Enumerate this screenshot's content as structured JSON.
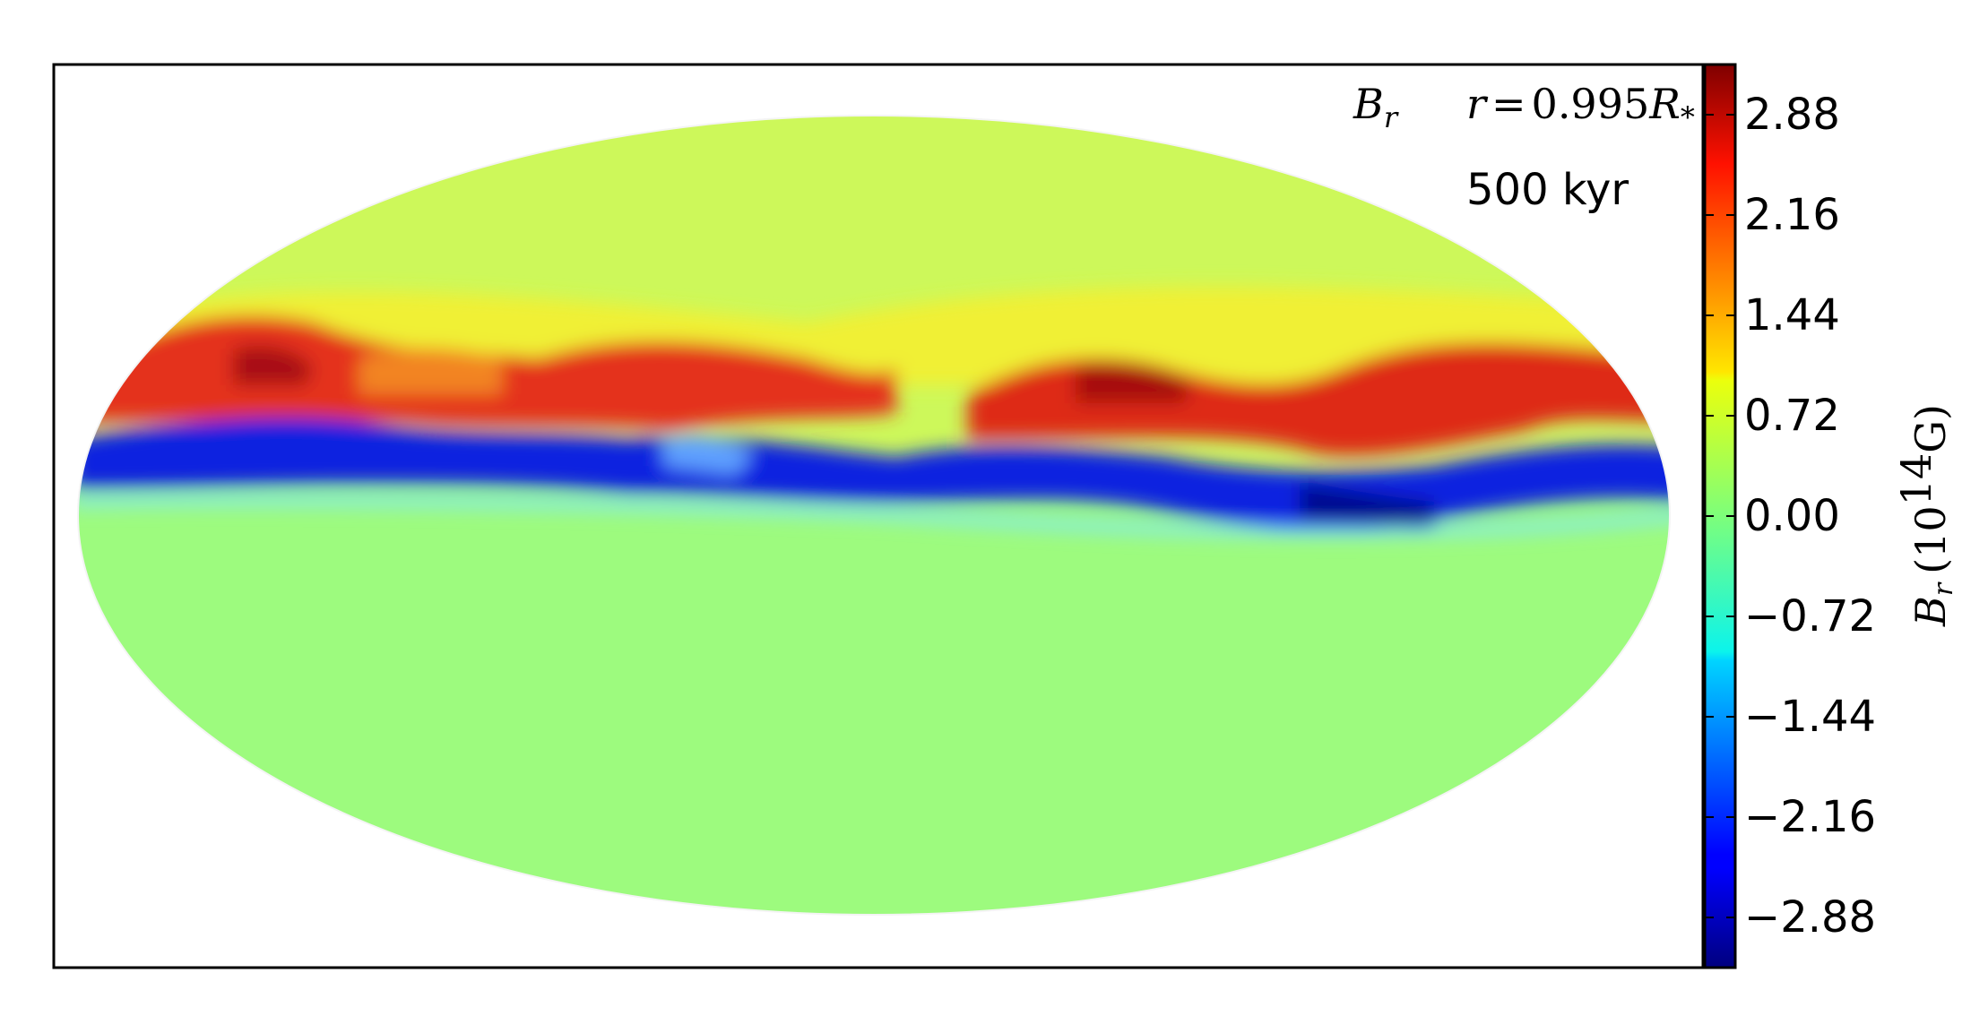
{
  "chart_data": {
    "type": "heatmap",
    "projection": "mollweide",
    "quantity_label": "B_r",
    "radius_label": "r = 0.995 R_*",
    "time_label": "500 kyr",
    "colorbar": {
      "label": "B_r (10^14 G)",
      "unit_prefix": "B",
      "unit_sub": "r",
      "unit_base": "(10",
      "unit_exp": "14",
      "unit_suffix": "G)",
      "colormap": "jet",
      "range": [
        -3.24,
        3.24
      ],
      "ticks": [
        2.88,
        2.16,
        1.44,
        0.72,
        0.0,
        -0.72,
        -1.44,
        -2.16,
        -2.88
      ],
      "tick_labels": [
        "2.88",
        "2.16",
        "1.44",
        "0.72",
        "0.00",
        "−0.72",
        "−1.44",
        "−2.16",
        "−2.88"
      ]
    },
    "field_summary": {
      "northern_hemisphere_background": 0.72,
      "southern_hemisphere_background": -0.3,
      "positive_band_peak": 2.88,
      "negative_band_peak": -2.88
    }
  },
  "labels": {
    "quantity_symbol": "B",
    "quantity_sub": "r",
    "radius_lhs": "r",
    "radius_eq": "=",
    "radius_value": "0.995",
    "radius_symbol": "R",
    "radius_sub": "*",
    "time": "500 kyr"
  }
}
